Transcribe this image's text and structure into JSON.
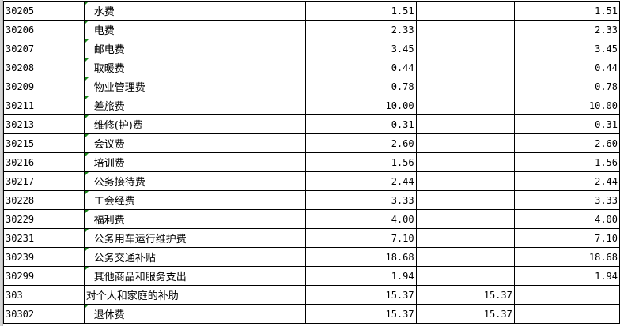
{
  "rows": [
    {
      "code": "30205",
      "name": "水费",
      "c": "1.51",
      "d": "",
      "e": "1.51",
      "indent": true
    },
    {
      "code": "30206",
      "name": "电费",
      "c": "2.33",
      "d": "",
      "e": "2.33",
      "indent": true
    },
    {
      "code": "30207",
      "name": "邮电费",
      "c": "3.45",
      "d": "",
      "e": "3.45",
      "indent": true
    },
    {
      "code": "30208",
      "name": "取暖费",
      "c": "0.44",
      "d": "",
      "e": "0.44",
      "indent": true
    },
    {
      "code": "30209",
      "name": "物业管理费",
      "c": "0.78",
      "d": "",
      "e": "0.78",
      "indent": true
    },
    {
      "code": "30211",
      "name": "差旅费",
      "c": "10.00",
      "d": "",
      "e": "10.00",
      "indent": true
    },
    {
      "code": "30213",
      "name": "维修(护)费",
      "c": "0.31",
      "d": "",
      "e": "0.31",
      "indent": true
    },
    {
      "code": "30215",
      "name": "会议费",
      "c": "2.60",
      "d": "",
      "e": "2.60",
      "indent": true
    },
    {
      "code": "30216",
      "name": "培训费",
      "c": "1.56",
      "d": "",
      "e": "1.56",
      "indent": true
    },
    {
      "code": "30217",
      "name": "公务接待费",
      "c": "2.44",
      "d": "",
      "e": "2.44",
      "indent": true
    },
    {
      "code": "30228",
      "name": "工会经费",
      "c": "3.33",
      "d": "",
      "e": "3.33",
      "indent": true
    },
    {
      "code": "30229",
      "name": "福利费",
      "c": "4.00",
      "d": "",
      "e": "4.00",
      "indent": true
    },
    {
      "code": "30231",
      "name": "公务用车运行维护费",
      "c": "7.10",
      "d": "",
      "e": "7.10",
      "indent": true
    },
    {
      "code": "30239",
      "name": "公务交通补贴",
      "c": "18.68",
      "d": "",
      "e": "18.68",
      "indent": true
    },
    {
      "code": "30299",
      "name": "其他商品和服务支出",
      "c": "1.94",
      "d": "",
      "e": "1.94",
      "indent": true
    },
    {
      "code": "303",
      "name": "对个人和家庭的补助",
      "c": "15.37",
      "d": "15.37",
      "e": "",
      "indent": false
    },
    {
      "code": "30302",
      "name": "退休费",
      "c": "15.37",
      "d": "15.37",
      "e": "",
      "indent": true
    }
  ]
}
